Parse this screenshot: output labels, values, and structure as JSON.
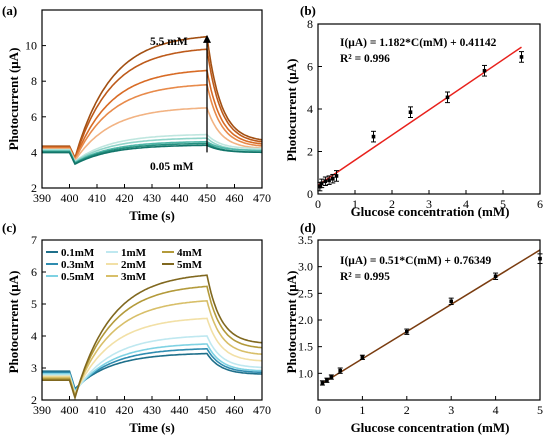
{
  "chart_data": [
    {
      "panel": "(a)",
      "type": "line",
      "xlabel": "Time (s)",
      "ylabel": "Photocurrent (μA)",
      "xlim": [
        390,
        470
      ],
      "ylim": [
        2,
        12
      ],
      "xticks": [
        390,
        400,
        410,
        420,
        430,
        440,
        450,
        460,
        470
      ],
      "yticks": [
        2,
        4,
        6,
        8,
        10
      ],
      "annotations": [
        {
          "text": "5.5 mM"
        },
        {
          "text": "0.05 mM"
        }
      ],
      "arrow": {
        "from_y": 4.0,
        "to_y": 10.6,
        "x": 450
      },
      "series": [
        {
          "color": "#a24f12",
          "plateau": 10.5,
          "end": 4.6
        },
        {
          "color": "#bd5a1a",
          "plateau": 9.8,
          "end": 4.5
        },
        {
          "color": "#d86b25",
          "plateau": 8.6,
          "end": 4.4
        },
        {
          "color": "#e88a4a",
          "plateau": 7.8,
          "end": 4.3
        },
        {
          "color": "#f2b383",
          "plateau": 6.5,
          "end": 4.2
        },
        {
          "color": "#bfe6df",
          "plateau": 5.0,
          "end": 4.2
        },
        {
          "color": "#8fd4c9",
          "plateau": 4.8,
          "end": 4.1
        },
        {
          "color": "#4fb6a8",
          "plateau": 4.6,
          "end": 4.1
        },
        {
          "color": "#24907f",
          "plateau": 4.5,
          "end": 4.0
        },
        {
          "color": "#12756a",
          "plateau": 4.4,
          "end": 4.0
        }
      ]
    },
    {
      "panel": "(b)",
      "type": "scatter",
      "xlabel": "Glucose concentration (mM)",
      "ylabel": "Photocurrent (μA)",
      "xlim": [
        0,
        6
      ],
      "ylim": [
        0,
        8
      ],
      "xticks": [
        0,
        1,
        2,
        3,
        4,
        5,
        6
      ],
      "yticks": [
        0,
        2,
        4,
        6,
        8
      ],
      "equation": "I(μA) = 1.182*C(mM) + 0.41142",
      "r2": "R² = 0.996",
      "fit": {
        "slope": 1.182,
        "intercept": 0.41142,
        "x_range": [
          0,
          5.5
        ],
        "color": "#e8211c"
      },
      "x": [
        0.05,
        0.1,
        0.2,
        0.3,
        0.4,
        0.5,
        1.5,
        2.5,
        3.5,
        4.5,
        5.5
      ],
      "y": [
        0.35,
        0.5,
        0.6,
        0.65,
        0.72,
        0.85,
        2.7,
        3.85,
        4.55,
        5.8,
        6.45
      ],
      "err": [
        0.2,
        0.2,
        0.2,
        0.2,
        0.2,
        0.25,
        0.25,
        0.25,
        0.25,
        0.25,
        0.25
      ]
    },
    {
      "panel": "(c)",
      "type": "line",
      "xlabel": "Time (s)",
      "ylabel": "Photocurrent (μA)",
      "xlim": [
        390,
        470
      ],
      "ylim": [
        2,
        7
      ],
      "xticks": [
        390,
        400,
        410,
        420,
        430,
        440,
        450,
        460,
        470
      ],
      "yticks": [
        2,
        3,
        4,
        5,
        6,
        7
      ],
      "series": [
        {
          "name": "0.1mM",
          "color": "#1e6f8a",
          "plateau": 3.45,
          "end": 2.8
        },
        {
          "name": "0.3mM",
          "color": "#2f8cb0",
          "plateau": 3.6,
          "end": 2.85
        },
        {
          "name": "0.5mM",
          "color": "#7fd2e3",
          "plateau": 3.75,
          "end": 2.9
        },
        {
          "name": "1mM",
          "color": "#bfe8f0",
          "plateau": 4.0,
          "end": 3.0
        },
        {
          "name": "2mM",
          "color": "#f2e0a6",
          "plateau": 4.55,
          "end": 3.2
        },
        {
          "name": "3mM",
          "color": "#d8bf69",
          "plateau": 5.1,
          "end": 3.4
        },
        {
          "name": "4mM",
          "color": "#b39a3a",
          "plateau": 5.55,
          "end": 3.6
        },
        {
          "name": "5mM",
          "color": "#80681f",
          "plateau": 5.9,
          "end": 3.75
        }
      ]
    },
    {
      "panel": "(d)",
      "type": "scatter",
      "xlabel": "Glucose concentration (mM)",
      "ylabel": "Photocurrent (μA)",
      "xlim": [
        0,
        5
      ],
      "ylim": [
        0.5,
        3.5
      ],
      "xticks": [
        0,
        1,
        2,
        3,
        4,
        5
      ],
      "yticks": [
        1.0,
        1.5,
        2.0,
        2.5,
        3.0,
        3.5
      ],
      "equation": "I(μA) = 0.51*C(mM) + 0.76349",
      "r2": "R² = 0.995",
      "fit": {
        "slope": 0.51,
        "intercept": 0.76349,
        "x_range": [
          0.1,
          5
        ],
        "color": "#7a3c10"
      },
      "x": [
        0.1,
        0.2,
        0.3,
        0.5,
        1,
        2,
        3,
        4,
        5
      ],
      "y": [
        0.82,
        0.87,
        0.93,
        1.05,
        1.3,
        1.78,
        2.35,
        2.82,
        3.15
      ],
      "err": [
        0.04,
        0.04,
        0.04,
        0.05,
        0.04,
        0.05,
        0.06,
        0.06,
        0.09
      ]
    }
  ]
}
